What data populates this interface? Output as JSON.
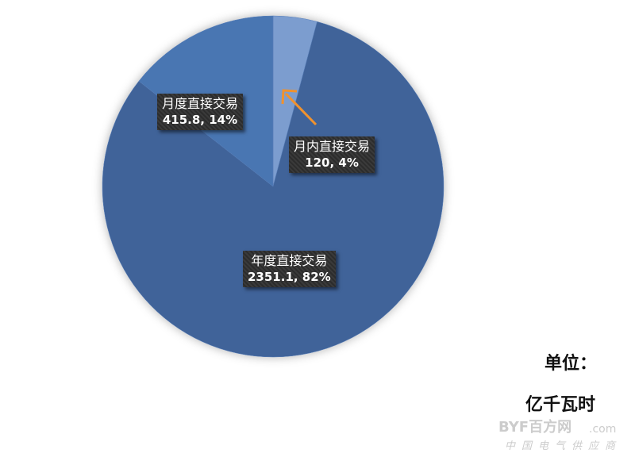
{
  "chart_data": {
    "type": "pie",
    "title": "",
    "slices": [
      {
        "name": "月内直接交易",
        "value": 120,
        "percent": "4%",
        "label": "120, 4%",
        "color": "#7b9dcf"
      },
      {
        "name": "年度直接交易",
        "value": 2351.1,
        "percent": "82%",
        "label": "2351.1, 82%",
        "color": "#3f6399"
      },
      {
        "name": "月度直接交易",
        "value": 415.8,
        "percent": "14%",
        "label": "415.8, 14%",
        "color": "#4a76b2"
      }
    ],
    "start_angle": "12 o'clock, clockwise",
    "annotation_arrow_color": "#f0922e",
    "unit_label": "单位：",
    "unit_value": "亿千瓦时"
  },
  "watermark": {
    "brand": "BYF百方网",
    "domain": ".com",
    "tagline": "中国电气供应商"
  }
}
